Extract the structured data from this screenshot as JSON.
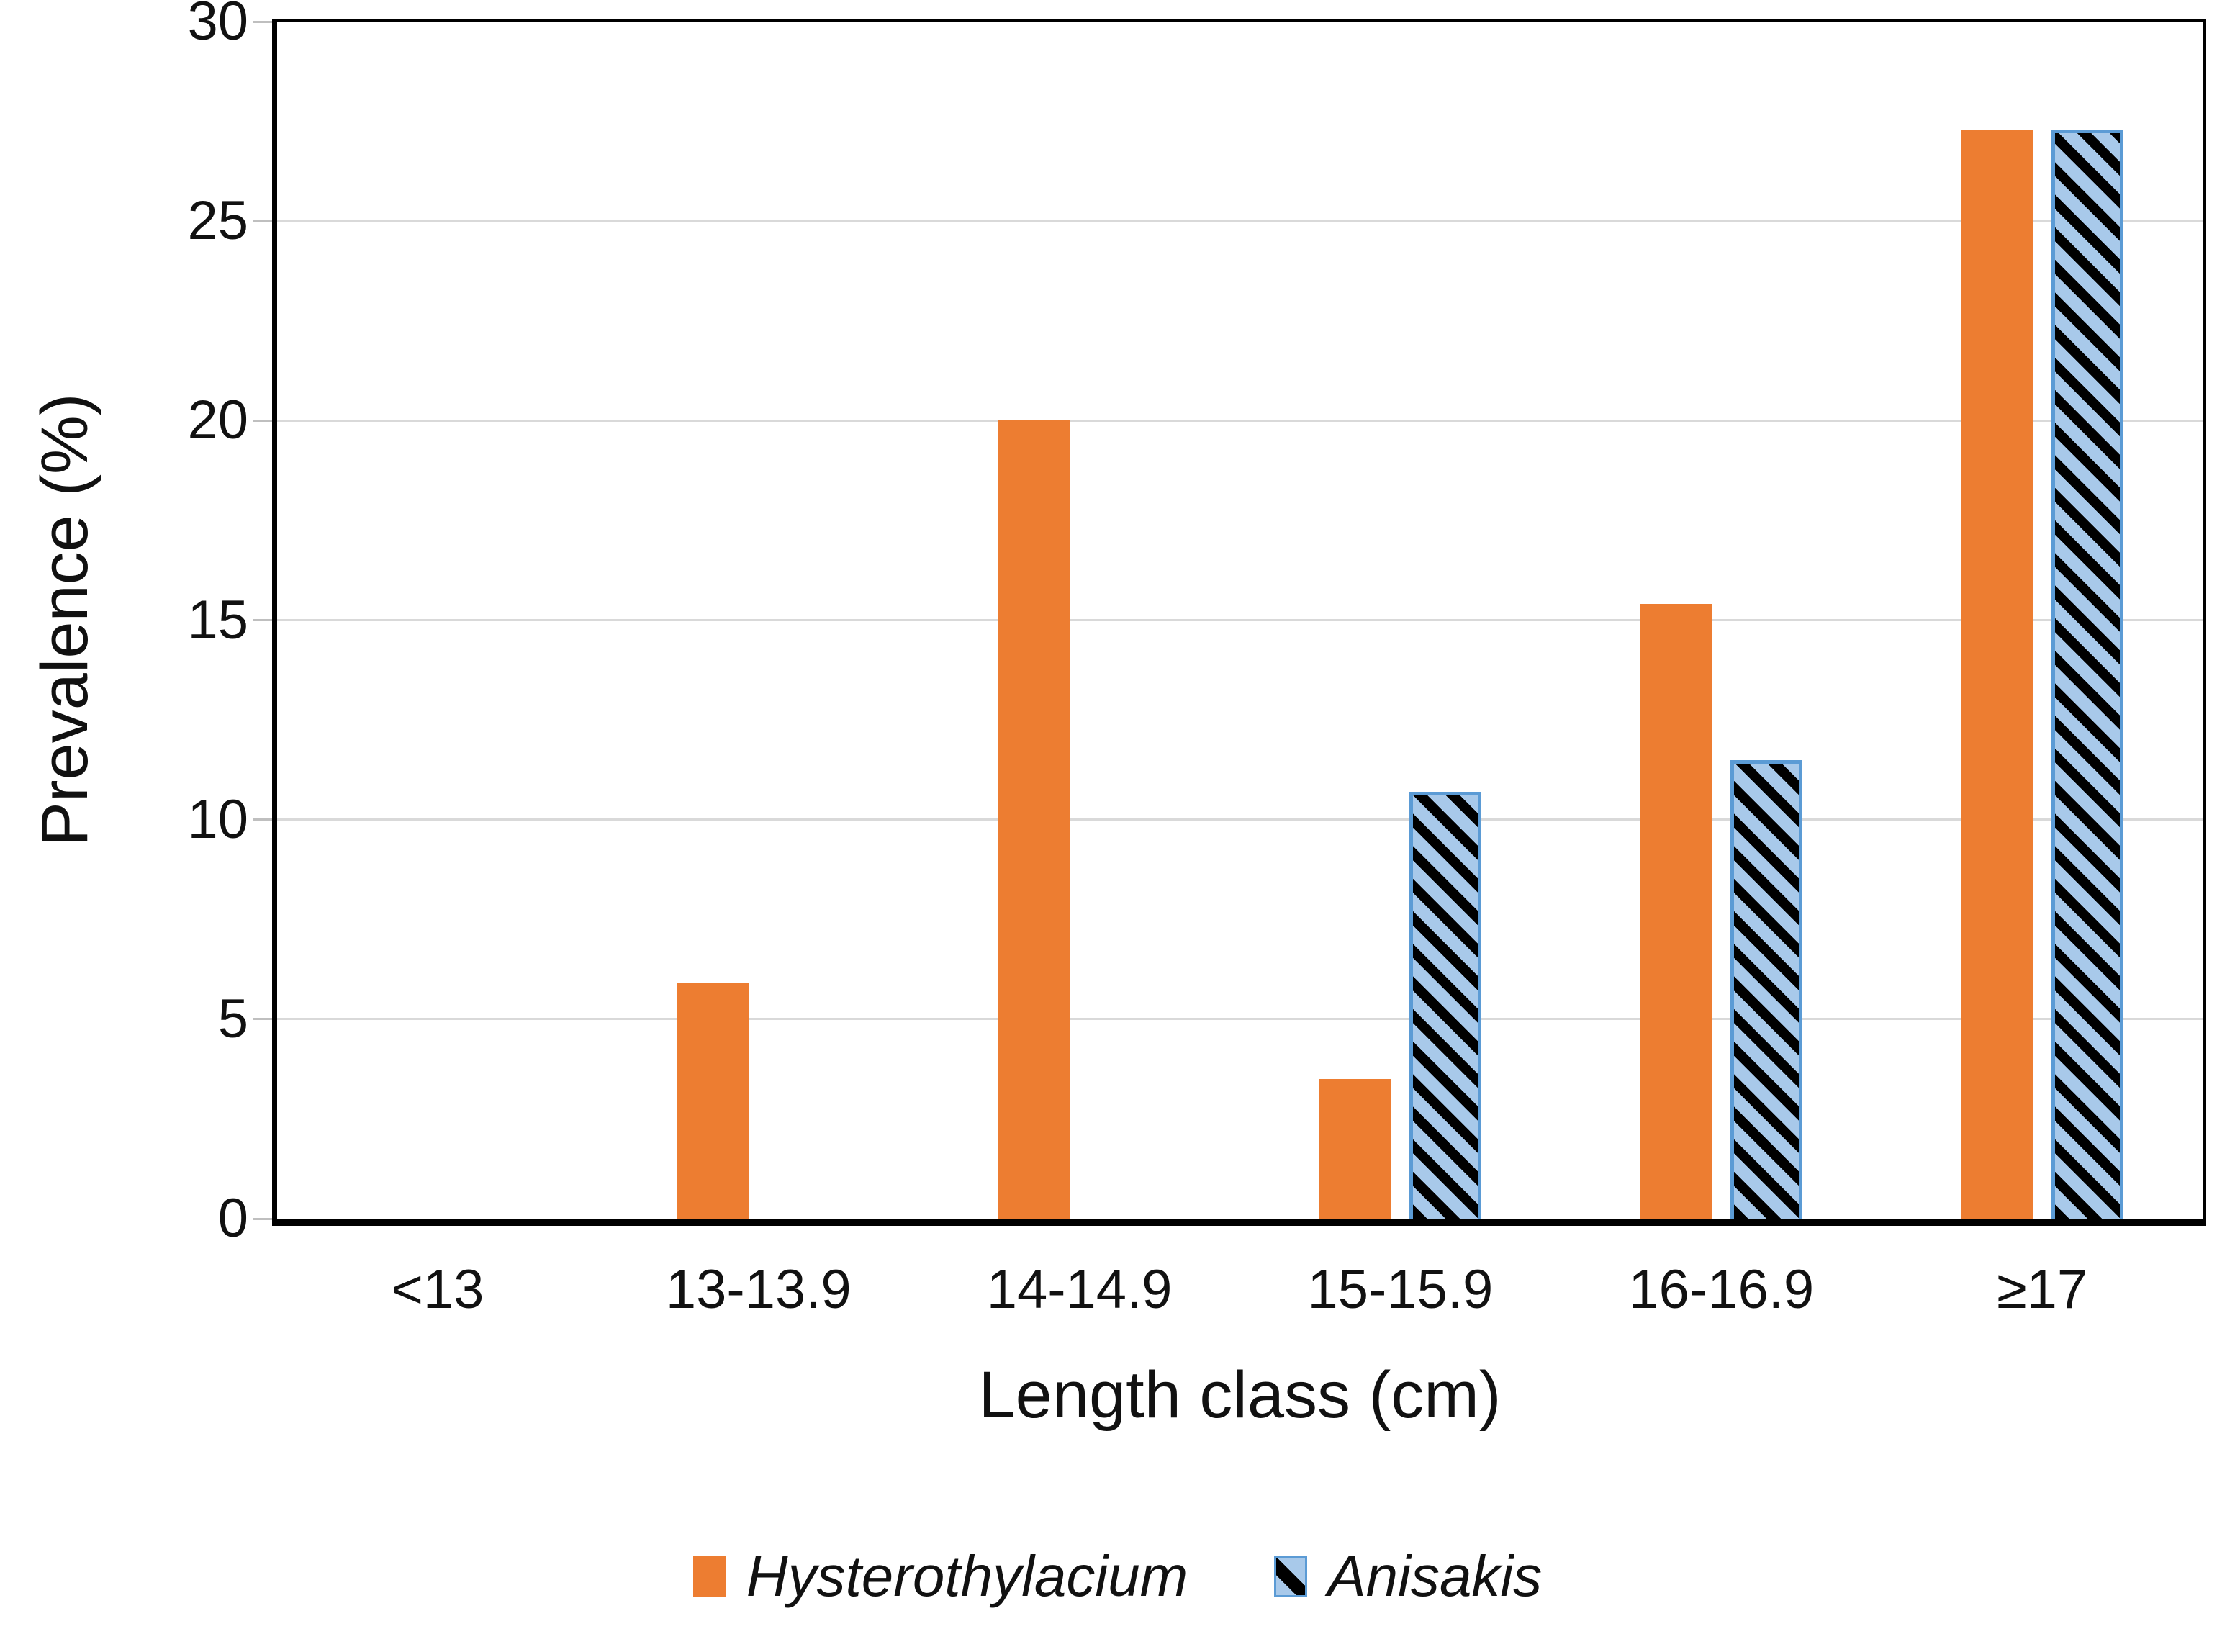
{
  "chart_data": {
    "type": "bar",
    "title": "",
    "categories": [
      "<13",
      "13-13.9",
      "14-14.9",
      "15-15.9",
      "16-16.9",
      "≥17"
    ],
    "series": [
      {
        "name": "Hysterothylacium",
        "values": [
          0,
          5.9,
          20,
          3.5,
          15.4,
          27.3
        ],
        "fill": "#ED7D31",
        "pattern": "solid"
      },
      {
        "name": "Anisakis",
        "values": [
          0,
          0,
          0,
          10.7,
          11.5,
          27.3
        ],
        "fill": "#A8C9EA",
        "border": "#5B9BD5",
        "pattern": "diagonal-down-hatch",
        "hatch_color": "#000000"
      }
    ],
    "xlabel": "Length class (cm)",
    "ylabel": "Prevalence (%)",
    "ylim": [
      0,
      30
    ],
    "yticks": [
      0,
      5,
      10,
      15,
      20,
      25,
      30
    ],
    "grid": true,
    "legend_position": "bottom"
  },
  "colors": {
    "background": "#FFFFFF",
    "axis": "#000000",
    "gridline": "#D9D9D9",
    "tick_mark": "#BFBFBF",
    "text": "#111111",
    "hysterothylacium_fill": "#ED7D31",
    "anisakis_fill": "#A8C9EA",
    "anisakis_border": "#5B9BD5",
    "anisakis_hatch": "#000000"
  }
}
